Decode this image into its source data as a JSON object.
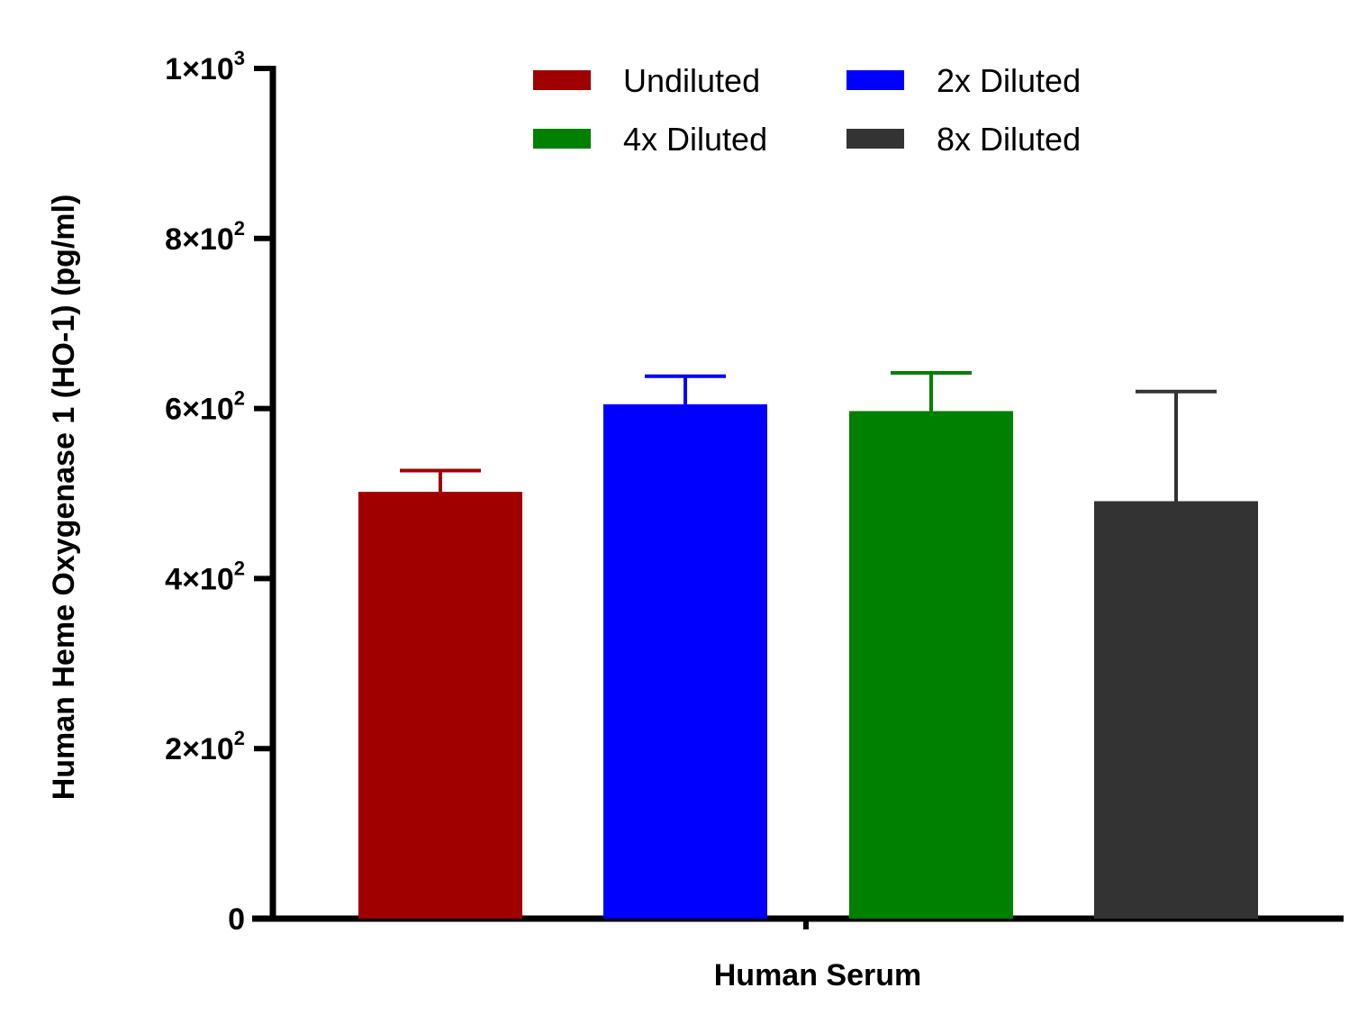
{
  "chart_data": {
    "type": "bar",
    "ylabel": "Human Heme Oxygenase 1 (HO-1) (pg/ml)",
    "xlabel": "Human Serum",
    "ylim": [
      0,
      1000
    ],
    "yticks": [
      {
        "value": 0,
        "mantissa": "0",
        "exp": ""
      },
      {
        "value": 200,
        "mantissa": "2×10",
        "exp": "2"
      },
      {
        "value": 400,
        "mantissa": "4×10",
        "exp": "2"
      },
      {
        "value": 600,
        "mantissa": "6×10",
        "exp": "2"
      },
      {
        "value": 800,
        "mantissa": "8×10",
        "exp": "2"
      },
      {
        "value": 1000,
        "mantissa": "1×10",
        "exp": "3"
      }
    ],
    "legend_position": "top",
    "series": [
      {
        "name": "Undiluted",
        "value": 502,
        "error": 25,
        "color": "#a00000"
      },
      {
        "name": "2x Diluted",
        "value": 605,
        "error": 33,
        "color": "#0000ff"
      },
      {
        "name": "4x Diluted",
        "value": 597,
        "error": 45,
        "color": "#008000"
      },
      {
        "name": "8x Diluted",
        "value": 491,
        "error": 129,
        "color": "#333333"
      }
    ],
    "grid": false
  }
}
